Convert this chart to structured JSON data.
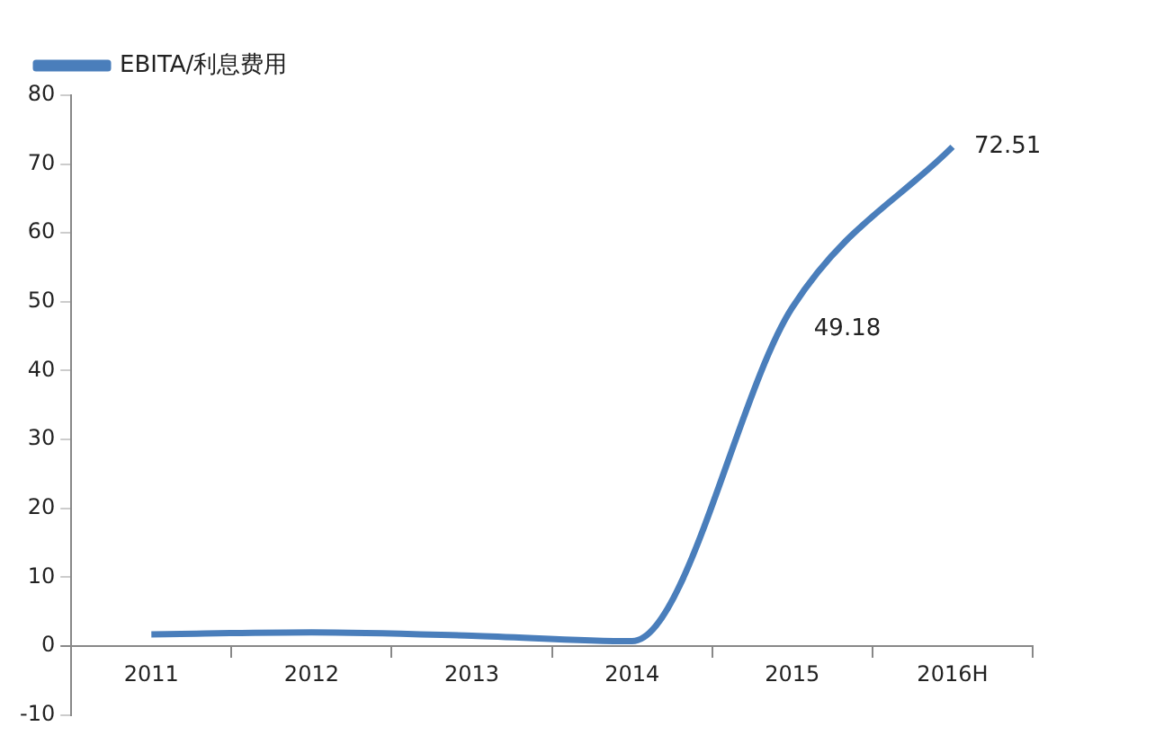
{
  "chart_data": {
    "type": "line",
    "categories": [
      "2011",
      "2012",
      "2013",
      "2014",
      "2015",
      "2016H"
    ],
    "series": [
      {
        "name": "EBITA/利息费用",
        "color": "#4a7ebb",
        "values": [
          1.7,
          2,
          1.5,
          0.7,
          49.18,
          72.51
        ],
        "value_labels": [
          null,
          null,
          null,
          null,
          "49.18",
          "72.51"
        ]
      }
    ],
    "ylim": [
      -10,
      80
    ],
    "yticks": [
      -10,
      0,
      10,
      20,
      30,
      40,
      50,
      60,
      70,
      80
    ],
    "grid": false,
    "legend": "top left",
    "marker": "none",
    "line_style": "solid"
  }
}
